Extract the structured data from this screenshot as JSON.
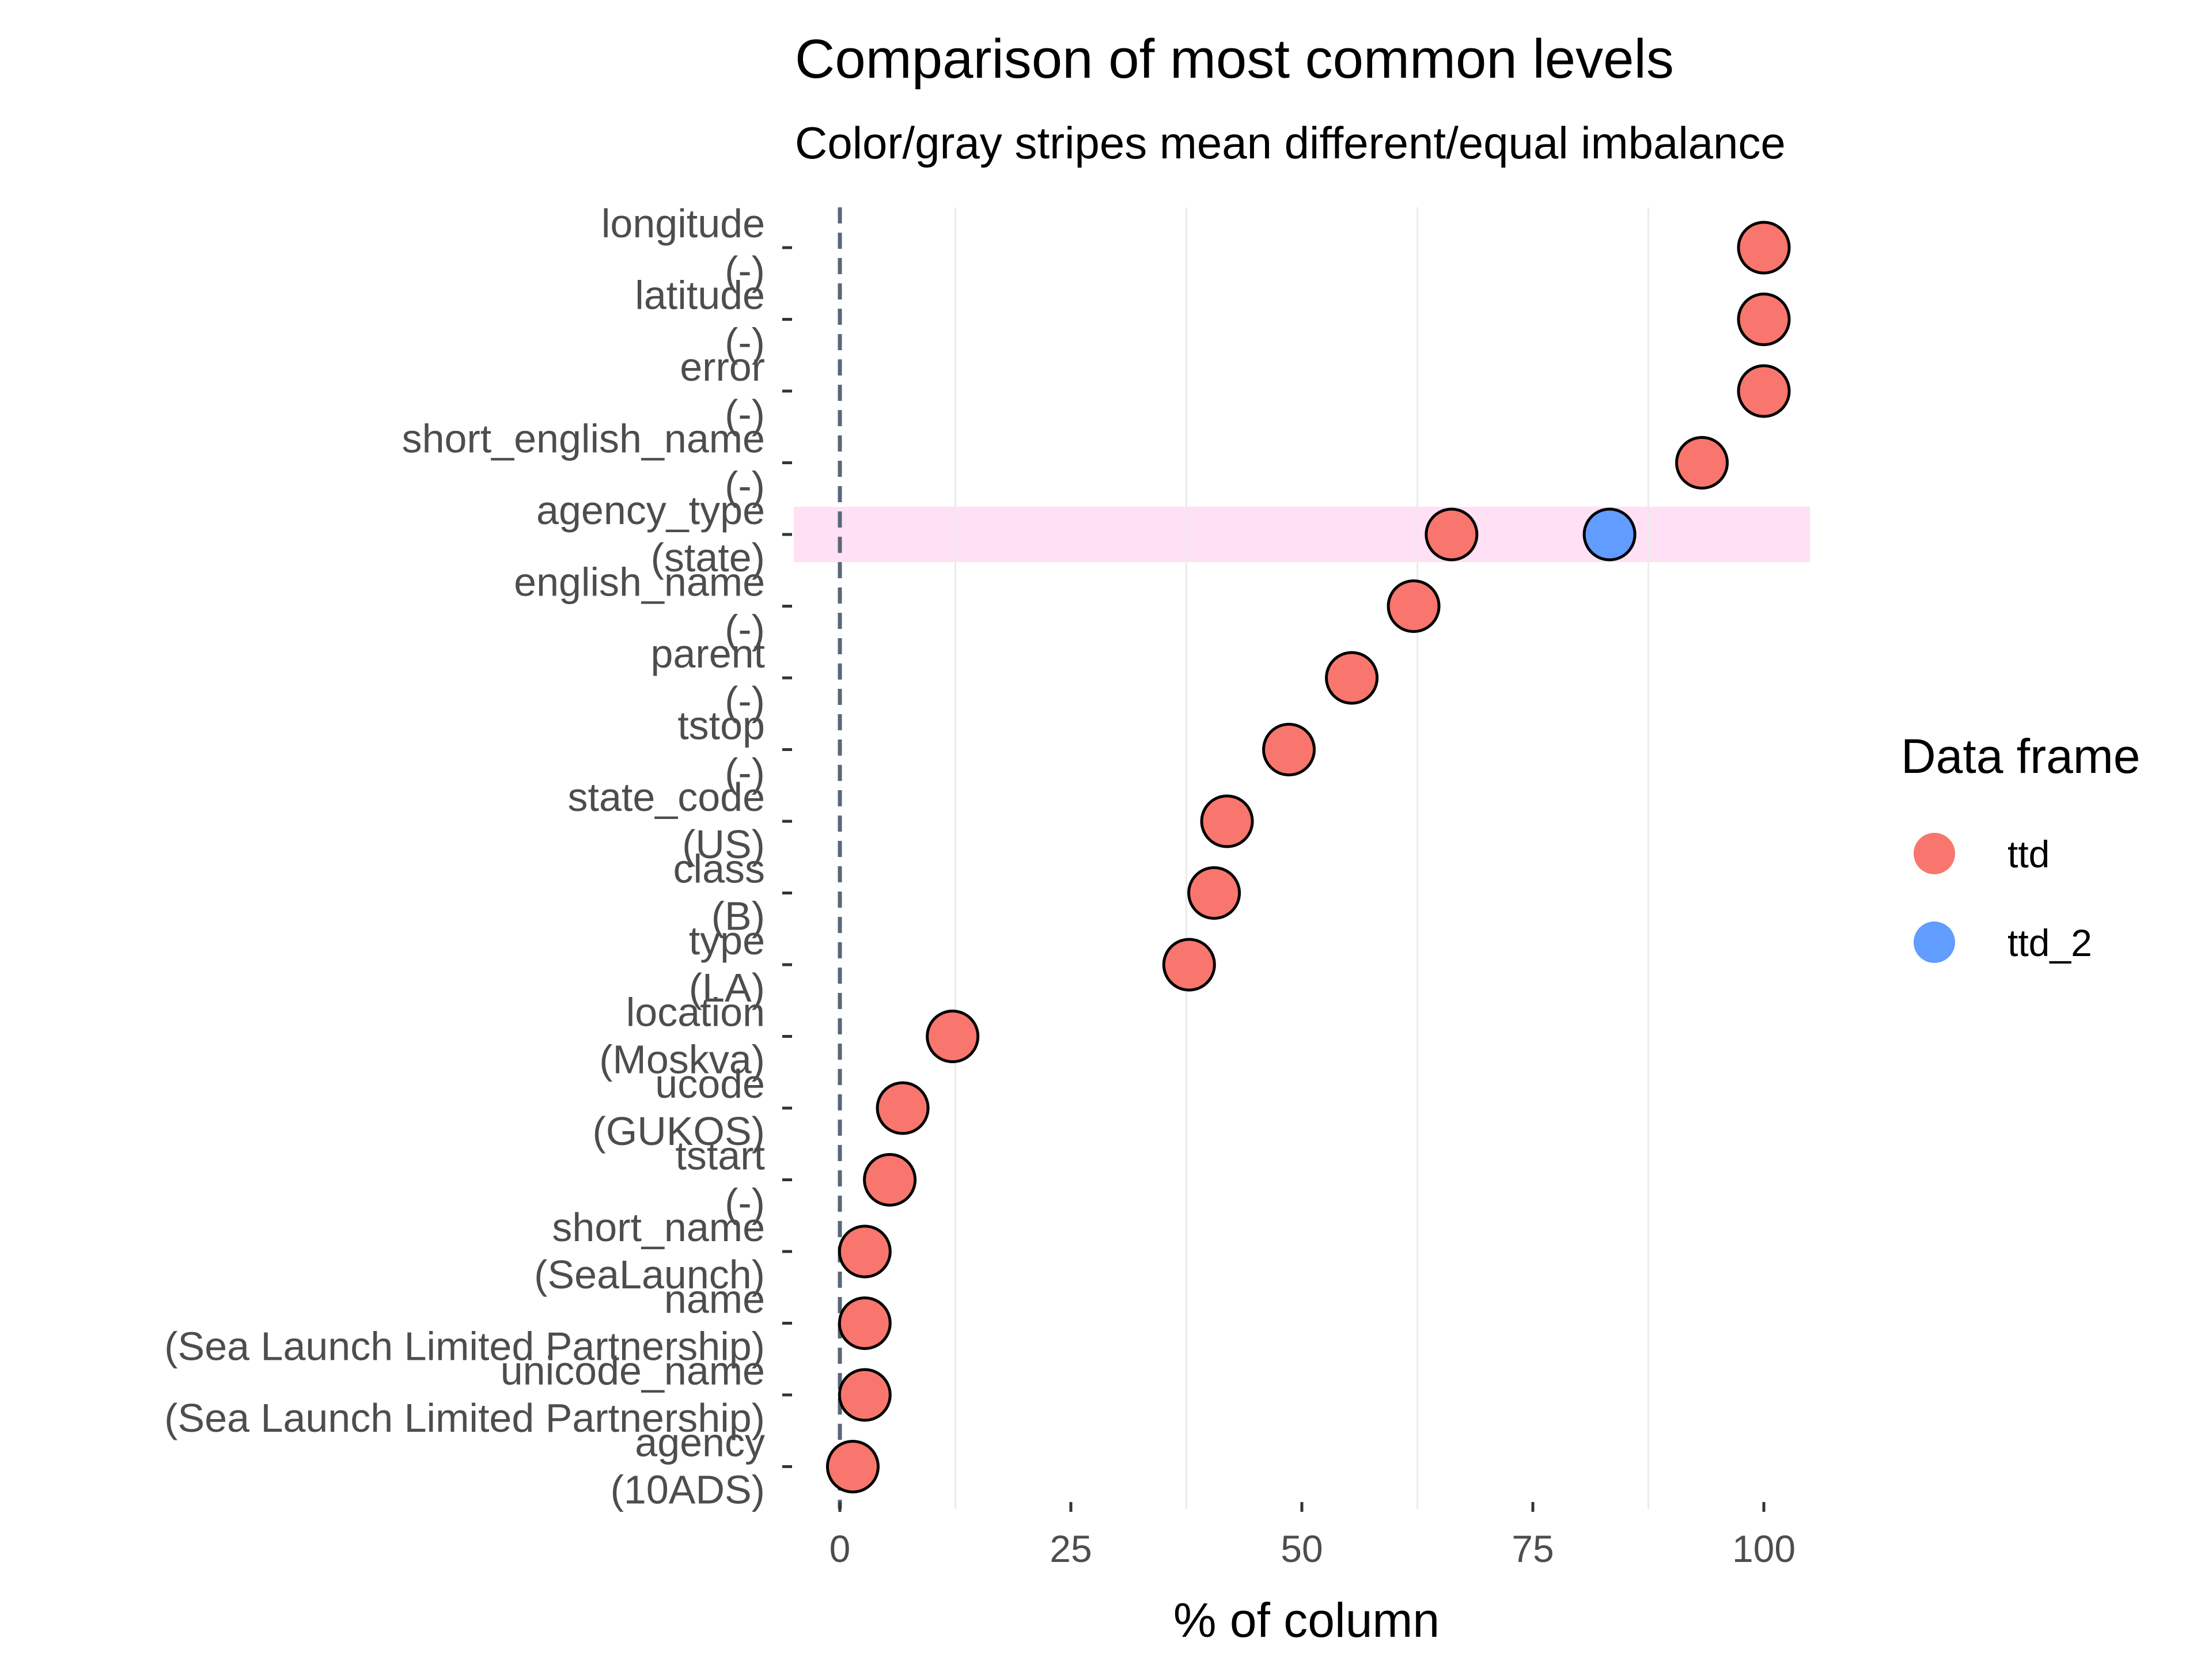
{
  "chart_data": {
    "type": "scatter",
    "title": "Comparison of most common levels",
    "subtitle": "Color/gray stripes mean different/equal imbalance",
    "xlabel": "% of column",
    "ylabel": "",
    "xlim": [
      -5,
      105
    ],
    "xticks": [
      0,
      25,
      50,
      75,
      100
    ],
    "grid": true,
    "reference_line_x": 0,
    "legend": {
      "title": "Data frame",
      "placement": "right",
      "entries": [
        {
          "name": "ttd",
          "color": "#F8766D"
        },
        {
          "name": "ttd_2",
          "color": "#619CFF"
        }
      ]
    },
    "stripe_color": "#FFE0F4",
    "rows": [
      {
        "variable": "longitude",
        "level": "(-)",
        "ttd": 100,
        "ttd_2": null,
        "stripe": false
      },
      {
        "variable": "latitude",
        "level": "(-)",
        "ttd": 100,
        "ttd_2": null,
        "stripe": false
      },
      {
        "variable": "error",
        "level": "(-)",
        "ttd": 100,
        "ttd_2": null,
        "stripe": false
      },
      {
        "variable": "short_english_name",
        "level": "(-)",
        "ttd": 93.3,
        "ttd_2": null,
        "stripe": false
      },
      {
        "variable": "agency_type",
        "level": "(state)",
        "ttd": 66.2,
        "ttd_2": 83.3,
        "stripe": true
      },
      {
        "variable": "english_name",
        "level": "(-)",
        "ttd": 62.1,
        "ttd_2": null,
        "stripe": false
      },
      {
        "variable": "parent",
        "level": "(-)",
        "ttd": 55.4,
        "ttd_2": null,
        "stripe": false
      },
      {
        "variable": "tstop",
        "level": "(-)",
        "ttd": 48.6,
        "ttd_2": null,
        "stripe": false
      },
      {
        "variable": "state_code",
        "level": "(US)",
        "ttd": 41.9,
        "ttd_2": null,
        "stripe": false
      },
      {
        "variable": "class",
        "level": "(B)",
        "ttd": 40.5,
        "ttd_2": null,
        "stripe": false
      },
      {
        "variable": "type",
        "level": "(LA)",
        "ttd": 37.8,
        "ttd_2": null,
        "stripe": false
      },
      {
        "variable": "location",
        "level": "(Moskva)",
        "ttd": 12.2,
        "ttd_2": null,
        "stripe": false
      },
      {
        "variable": "ucode",
        "level": "(GUKOS)",
        "ttd": 6.8,
        "ttd_2": null,
        "stripe": false
      },
      {
        "variable": "tstart",
        "level": "(-)",
        "ttd": 5.4,
        "ttd_2": null,
        "stripe": false
      },
      {
        "variable": "short_name",
        "level": "(SeaLaunch)",
        "ttd": 2.7,
        "ttd_2": null,
        "stripe": false
      },
      {
        "variable": "name",
        "level": "(Sea Launch Limited Partnership)",
        "ttd": 2.7,
        "ttd_2": null,
        "stripe": false
      },
      {
        "variable": "unicode_name",
        "level": "(Sea Launch Limited Partnership)",
        "ttd": 2.7,
        "ttd_2": null,
        "stripe": false
      },
      {
        "variable": "agency",
        "level": "(10ADS)",
        "ttd": 1.4,
        "ttd_2": null,
        "stripe": false
      }
    ]
  }
}
